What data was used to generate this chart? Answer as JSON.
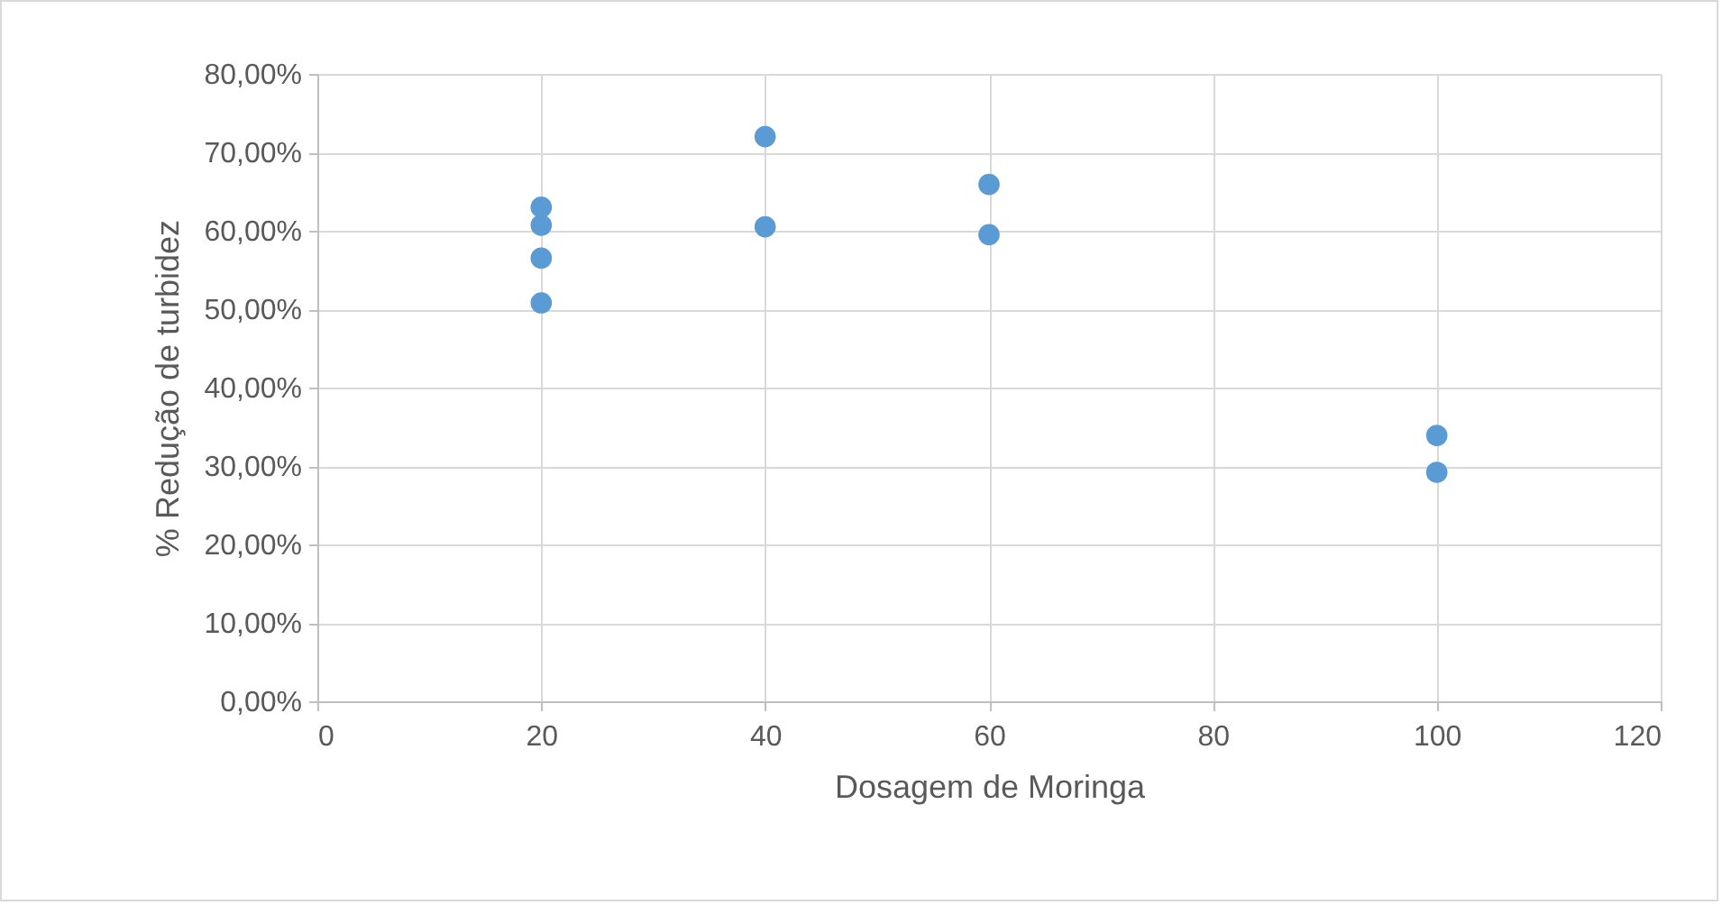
{
  "chart_data": {
    "type": "scatter",
    "xlabel": "Dosagem de Moringa",
    "ylabel": "% Redução de turbidez",
    "series": [
      {
        "color": "#5b9bd5",
        "x": [
          20,
          20,
          20,
          20,
          40,
          40,
          60,
          60,
          100,
          100
        ],
        "values": [
          63.0,
          60.7,
          56.5,
          50.8,
          72.0,
          60.5,
          65.9,
          59.5,
          33.9,
          29.2
        ]
      }
    ],
    "xlim": [
      0,
      120
    ],
    "xticks": [
      0,
      20,
      40,
      60,
      80,
      100,
      120
    ],
    "ylim": [
      0,
      80
    ],
    "yticks": [
      {
        "value": 0,
        "label": "0,00%"
      },
      {
        "value": 10,
        "label": "10,00%"
      },
      {
        "value": 20,
        "label": "20,00%"
      },
      {
        "value": 30,
        "label": "30,00%"
      },
      {
        "value": 40,
        "label": "40,00%"
      },
      {
        "value": 50,
        "label": "50,00%"
      },
      {
        "value": 60,
        "label": "60,00%"
      },
      {
        "value": 70,
        "label": "70,00%"
      },
      {
        "value": 80,
        "label": "80,00%"
      }
    ],
    "grid": true,
    "marker": "circle",
    "legend": false
  }
}
